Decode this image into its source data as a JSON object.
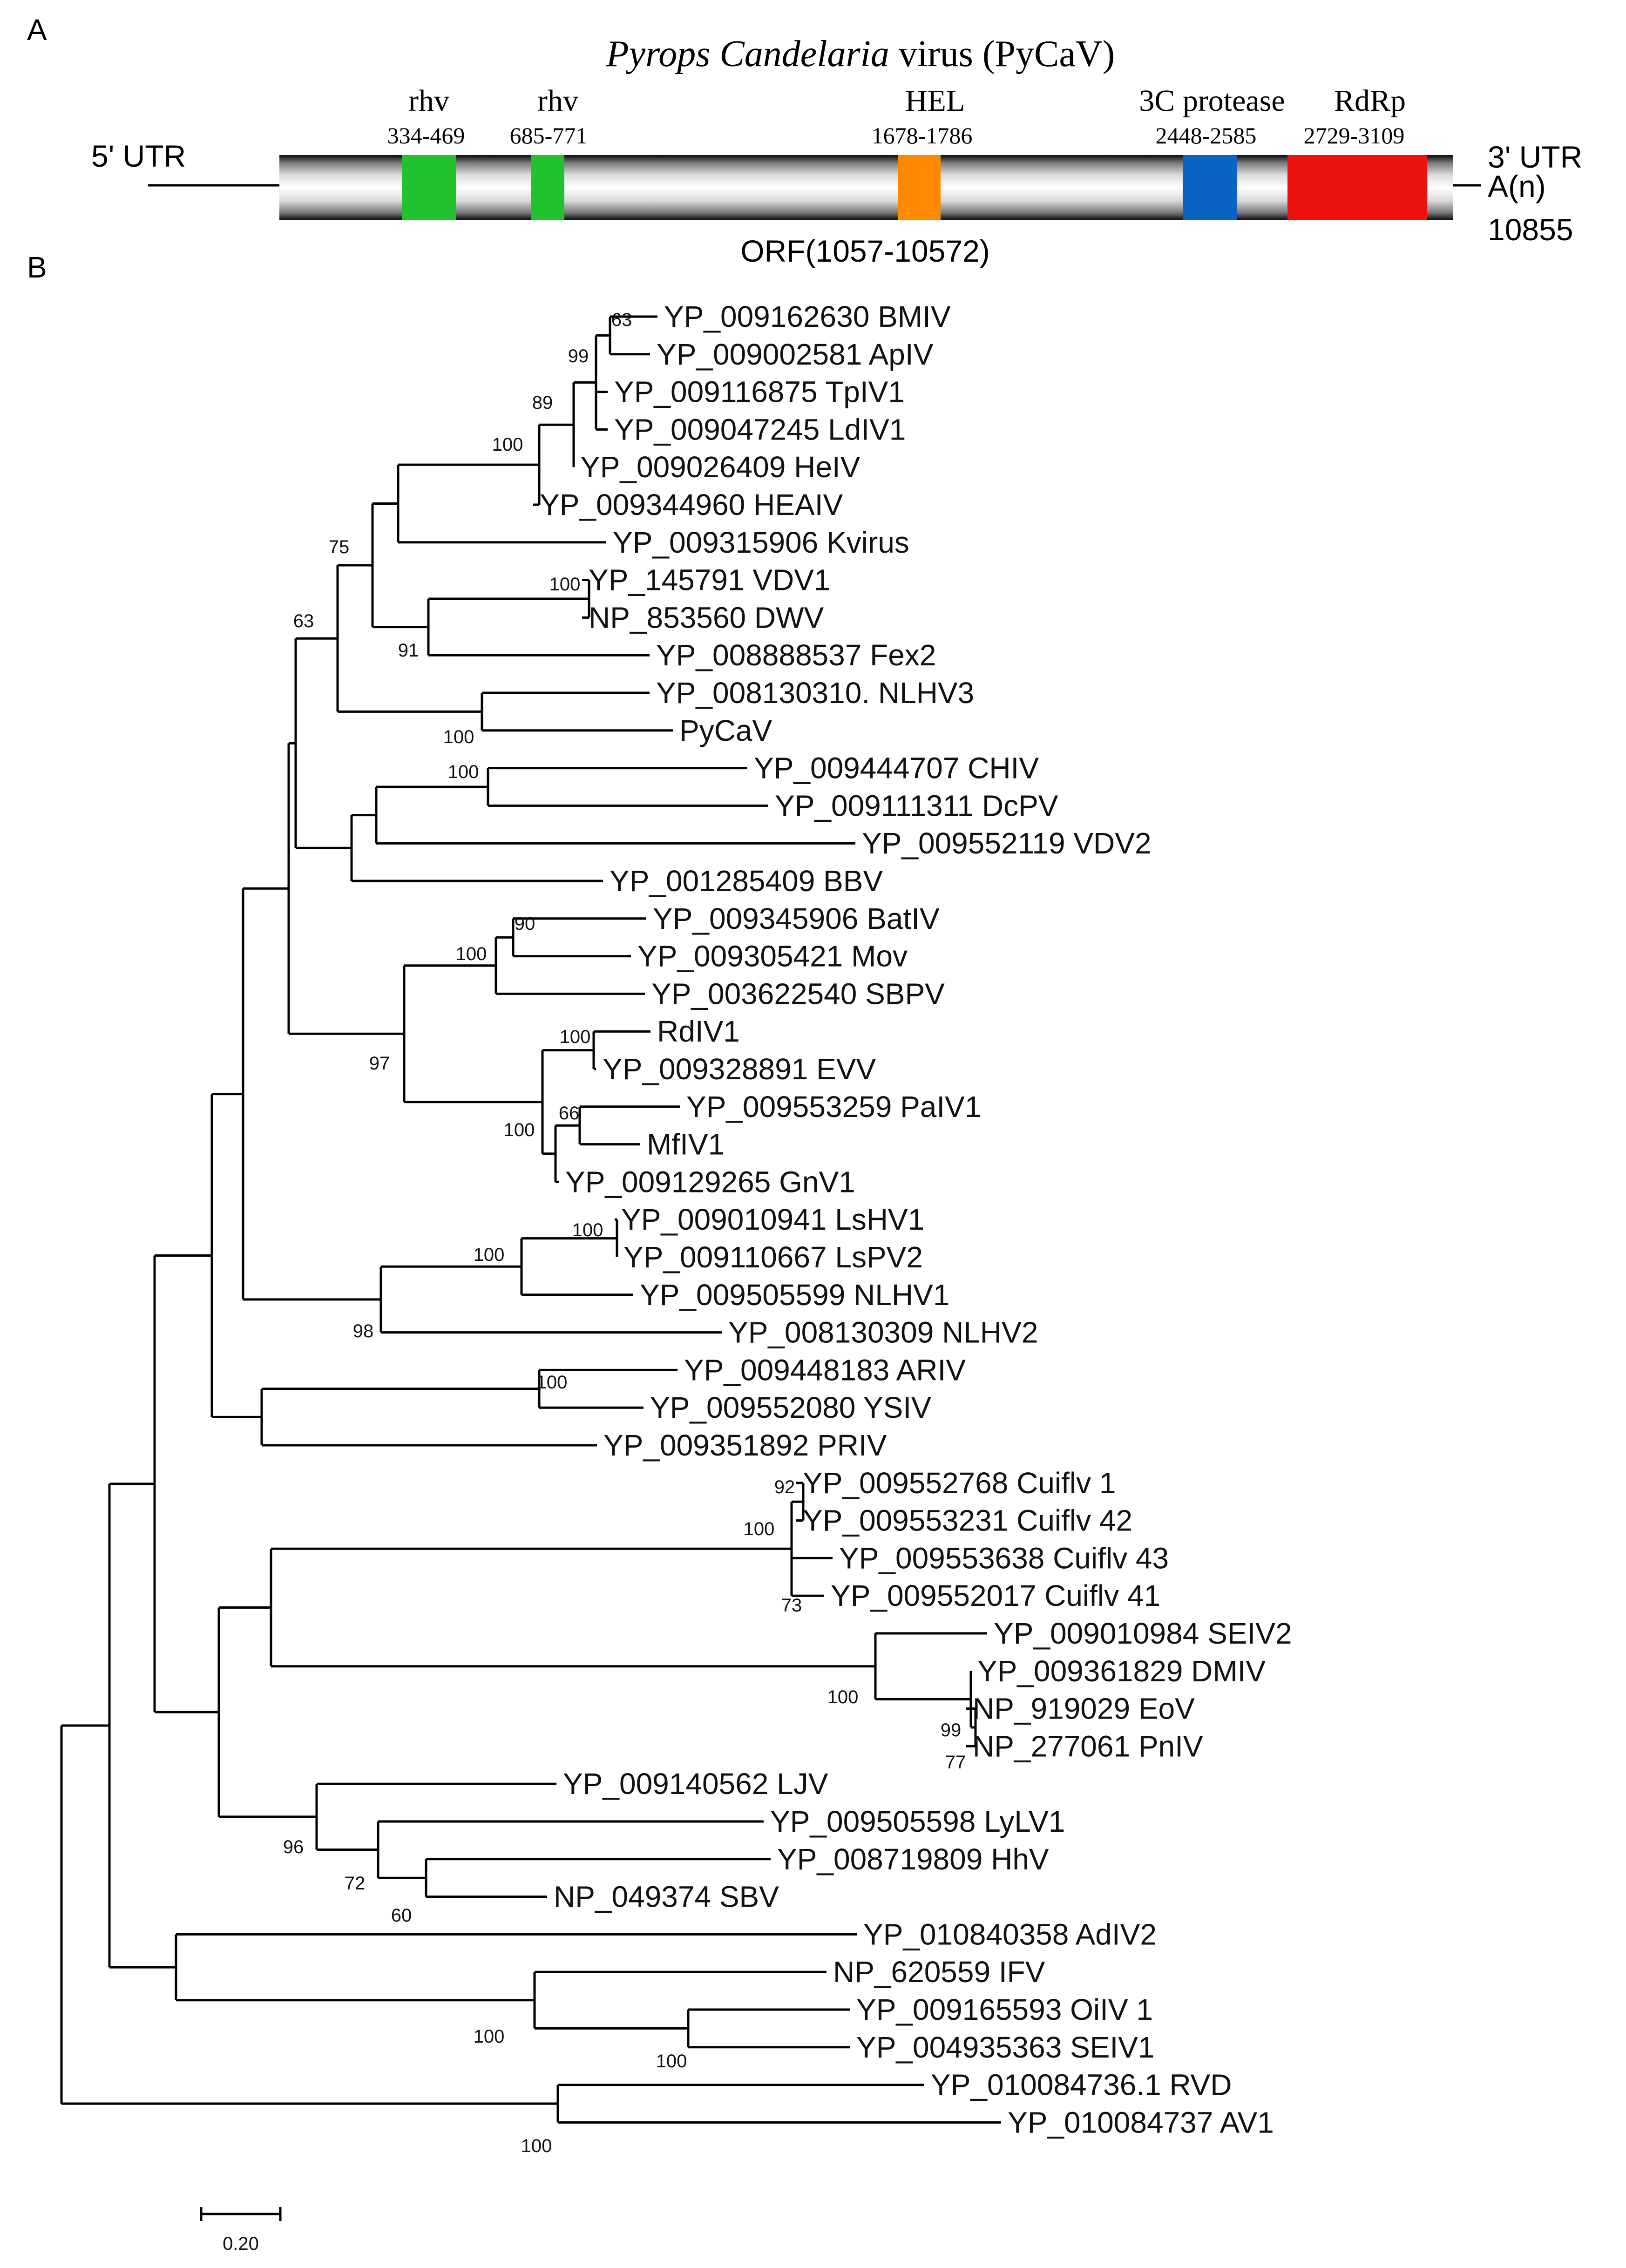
{
  "panel_a": {
    "label": "A",
    "title_italic": "Pyrops Candelaria",
    "title_rest": " virus (PyCaV)",
    "utr5": "5' UTR",
    "utr3": "3' UTR",
    "polya": "A(n)",
    "length": "10855",
    "orf": "ORF(1057-10572)",
    "domains": [
      {
        "name": "rhv",
        "range": "334-469",
        "color": "#22c22e"
      },
      {
        "name": "rhv",
        "range": "685-771",
        "color": "#22c22e"
      },
      {
        "name": "HEL",
        "range": "1678-1786",
        "color": "#ff8a00"
      },
      {
        "name": "3C protease",
        "range": "2448-2585",
        "color": "#0a63c4"
      },
      {
        "name": "RdRp",
        "range": "2729-3109",
        "color": "#ee1111"
      }
    ]
  },
  "panel_b": {
    "label": "B",
    "scale_label": "0.20",
    "highlight_color": "#ee2222",
    "leaves": [
      "YP_009162630 BMIV",
      "YP_009002581 ApIV",
      "YP_009116875 TpIV1",
      "YP_009047245 LdIV1",
      "YP_009026409 HeIV",
      "YP_009344960 HEAIV",
      "YP_009315906 Kvirus",
      "YP_145791 VDV1",
      "NP_853560 DWV",
      "YP_008888537 Fex2",
      "YP_008130310. NLHV3",
      "PyCaV",
      "YP_009444707 CHIV",
      "YP_009111311 DcPV",
      "YP_009552119 VDV2",
      "YP_001285409 BBV",
      "YP_009345906 BatIV",
      "YP_009305421 Mov",
      "YP_003622540 SBPV",
      "RdIV1",
      "YP_009328891 EVV",
      "YP_009553259 PaIV1",
      "MfIV1",
      "YP_009129265 GnV1",
      "YP_009010941 LsHV1",
      "YP_009110667 LsPV2",
      "YP_009505599 NLHV1",
      "YP_008130309 NLHV2",
      "YP_009448183 ARIV",
      "YP_009552080 YSIV",
      "YP_009351892 PRIV",
      "YP_009552768 Cuiflv 1",
      "YP_009553231 Cuiflv 42",
      "YP_009553638 Cuiflv 43",
      "YP_009552017 Cuiflv 41",
      "YP_009010984 SEIV2",
      "YP_009361829 DMIV",
      "NP_919029 EoV",
      "NP_277061 PnIV",
      "YP_009140562 LJV",
      "YP_009505598 LyLV1",
      "YP_008719809 HhV",
      "NP_049374 SBV",
      "YP_010840358 AdIV2",
      "NP_620559 IFV",
      "YP_009165593 OiIV 1",
      "YP_004935363 SEIV1",
      "YP_010084736.1 RVD",
      "YP_010084737 AV1"
    ],
    "bootstrap": [
      "63",
      "99",
      "89",
      "100",
      "75",
      "100",
      "91",
      "63",
      "100",
      "100",
      "90",
      "100",
      "97",
      "100",
      "66",
      "100",
      "100",
      "100",
      "98",
      "100",
      "92",
      "100",
      "73",
      "100",
      "99",
      "77",
      "96",
      "72",
      "60",
      "100",
      "100",
      "100"
    ]
  }
}
